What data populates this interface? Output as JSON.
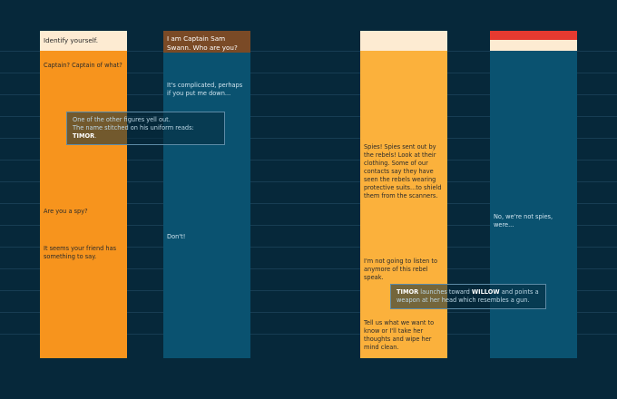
{
  "colors": {
    "background": "#06283a",
    "orange": "#f7941d",
    "light_orange": "#fbb13c",
    "teal": "#0a5270",
    "cream": "#fdebd2",
    "brown": "#7a4a26",
    "red": "#e63a30"
  },
  "columns": [
    {
      "header": "Identify yourself.",
      "messages": [
        "Captain? Captain of what?",
        "Are you a spy?",
        "It seems your friend has something to say."
      ]
    },
    {
      "header": "I am Captain Sam Swann. Who are you?",
      "messages": [
        "It's complicated, perhaps if you put me down...",
        "Don't!"
      ]
    },
    {
      "header": "",
      "messages": [
        "Spies! Spies sent out by the rebels! Look at their clothing. Some of our contacts say they have seen the rebels wearing protective suits...to shield them from the scanners.",
        "I'm not going to listen to anymore of this rebel speak.",
        "Tell us what we want to know or I'll take her thoughts and wipe her mind clean."
      ]
    },
    {
      "header": "",
      "messages": [
        "No, we're not spies, were..."
      ]
    }
  ],
  "notes": [
    {
      "line1": "One of the other figures yell out.",
      "line2_prefix": "The name stitched on his uniform reads: ",
      "line2_name": "TIMOR",
      "line2_suffix": "."
    },
    {
      "name1": "TIMOR",
      "text1": " launches toward ",
      "name2": "WILLOW",
      "text2": " and points a weapon at her head which resembles a gun."
    }
  ]
}
